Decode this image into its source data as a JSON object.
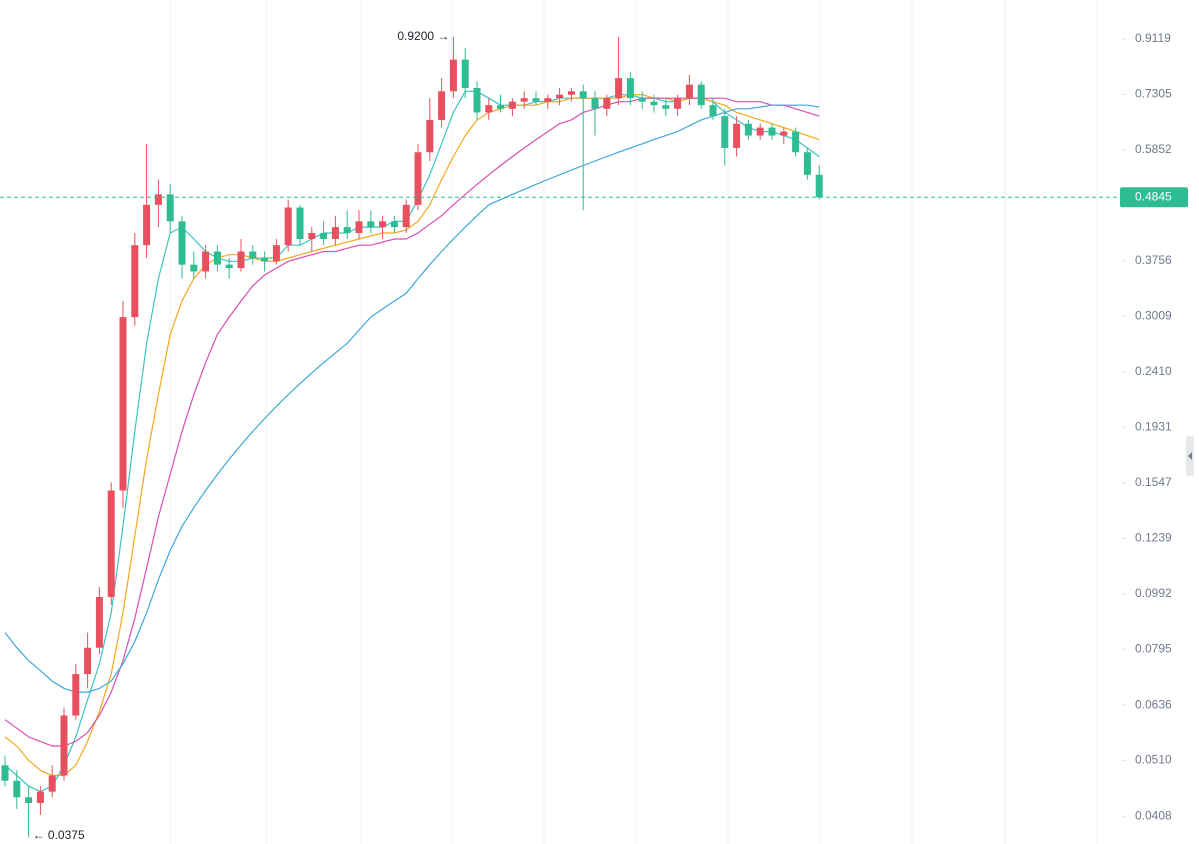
{
  "chart_data": {
    "type": "candlestick",
    "up_color": "#e8505f",
    "down_color": "#2ebd92",
    "log_scale": true,
    "ylim": [
      0.0365,
      1.066
    ],
    "yticks": [
      0.9119,
      0.7305,
      0.5852,
      0.3756,
      0.3009,
      {
        "value": 0.241,
        "label": "0.2410"
      },
      0.1931,
      0.1547,
      0.1239,
      0.0992,
      0.0795,
      0.0636,
      {
        "value": 0.051,
        "label": "0.0510"
      },
      0.0408
    ],
    "ohlc": [
      [
        0.05,
        0.052,
        0.046,
        0.047
      ],
      [
        0.047,
        0.049,
        0.042,
        0.044
      ],
      [
        0.044,
        0.046,
        0.0375,
        0.043
      ],
      [
        0.043,
        0.046,
        0.041,
        0.045
      ],
      [
        0.045,
        0.05,
        0.044,
        0.048
      ],
      [
        0.048,
        0.063,
        0.047,
        0.061
      ],
      [
        0.061,
        0.075,
        0.06,
        0.072
      ],
      [
        0.072,
        0.085,
        0.068,
        0.08
      ],
      [
        0.08,
        0.102,
        0.078,
        0.098
      ],
      [
        0.098,
        0.155,
        0.095,
        0.15
      ],
      [
        0.15,
        0.32,
        0.14,
        0.3
      ],
      [
        0.3,
        0.42,
        0.29,
        0.4
      ],
      [
        0.4,
        0.6,
        0.38,
        0.47
      ],
      [
        0.47,
        0.52,
        0.43,
        0.49
      ],
      [
        0.49,
        0.51,
        0.42,
        0.44
      ],
      [
        0.44,
        0.45,
        0.35,
        0.37
      ],
      [
        0.37,
        0.39,
        0.35,
        0.36
      ],
      [
        0.36,
        0.4,
        0.35,
        0.39
      ],
      [
        0.39,
        0.4,
        0.36,
        0.37
      ],
      [
        0.37,
        0.38,
        0.35,
        0.365
      ],
      [
        0.365,
        0.41,
        0.36,
        0.39
      ],
      [
        0.39,
        0.4,
        0.37,
        0.38
      ],
      [
        0.38,
        0.39,
        0.36,
        0.375
      ],
      [
        0.375,
        0.41,
        0.37,
        0.4
      ],
      [
        0.4,
        0.48,
        0.39,
        0.465
      ],
      [
        0.465,
        0.47,
        0.4,
        0.41
      ],
      [
        0.41,
        0.43,
        0.39,
        0.42
      ],
      [
        0.42,
        0.44,
        0.4,
        0.41
      ],
      [
        0.41,
        0.45,
        0.4,
        0.43
      ],
      [
        0.43,
        0.46,
        0.41,
        0.42
      ],
      [
        0.42,
        0.46,
        0.41,
        0.44
      ],
      [
        0.44,
        0.46,
        0.42,
        0.43
      ],
      [
        0.43,
        0.45,
        0.41,
        0.44
      ],
      [
        0.44,
        0.45,
        0.42,
        0.43
      ],
      [
        0.43,
        0.48,
        0.42,
        0.47
      ],
      [
        0.47,
        0.6,
        0.46,
        0.58
      ],
      [
        0.58,
        0.72,
        0.56,
        0.66
      ],
      [
        0.66,
        0.78,
        0.64,
        0.74
      ],
      [
        0.74,
        0.92,
        0.72,
        0.84
      ],
      [
        0.84,
        0.88,
        0.72,
        0.75
      ],
      [
        0.75,
        0.77,
        0.66,
        0.68
      ],
      [
        0.68,
        0.72,
        0.66,
        0.7
      ],
      [
        0.7,
        0.73,
        0.68,
        0.69
      ],
      [
        0.69,
        0.72,
        0.67,
        0.71
      ],
      [
        0.71,
        0.74,
        0.69,
        0.72
      ],
      [
        0.72,
        0.74,
        0.7,
        0.71
      ],
      [
        0.71,
        0.73,
        0.69,
        0.72
      ],
      [
        0.72,
        0.75,
        0.7,
        0.73
      ],
      [
        0.73,
        0.75,
        0.71,
        0.74
      ],
      [
        0.74,
        0.76,
        0.46,
        0.72
      ],
      [
        0.72,
        0.74,
        0.62,
        0.69
      ],
      [
        0.69,
        0.73,
        0.67,
        0.72
      ],
      [
        0.72,
        0.92,
        0.7,
        0.78
      ],
      [
        0.78,
        0.8,
        0.7,
        0.72
      ],
      [
        0.72,
        0.74,
        0.69,
        0.71
      ],
      [
        0.71,
        0.73,
        0.68,
        0.7
      ],
      [
        0.7,
        0.72,
        0.67,
        0.69
      ],
      [
        0.69,
        0.73,
        0.67,
        0.72
      ],
      [
        0.72,
        0.79,
        0.7,
        0.76
      ],
      [
        0.76,
        0.77,
        0.69,
        0.7
      ],
      [
        0.7,
        0.72,
        0.66,
        0.67
      ],
      [
        0.67,
        0.69,
        0.55,
        0.59
      ],
      [
        0.59,
        0.67,
        0.57,
        0.65
      ],
      [
        0.65,
        0.66,
        0.61,
        0.62
      ],
      [
        0.62,
        0.65,
        0.61,
        0.64
      ],
      [
        0.64,
        0.65,
        0.61,
        0.62
      ],
      [
        0.62,
        0.64,
        0.6,
        0.63
      ],
      [
        0.63,
        0.64,
        0.57,
        0.58
      ],
      [
        0.58,
        0.59,
        0.52,
        0.53
      ],
      [
        0.53,
        0.55,
        0.48,
        0.4845
      ]
    ],
    "series": [
      {
        "color": "#3cc4c4",
        "values": [
          0.05,
          0.048,
          0.046,
          0.045,
          0.046,
          0.05,
          0.056,
          0.065,
          0.075,
          0.092,
          0.13,
          0.19,
          0.27,
          0.35,
          0.42,
          0.43,
          0.41,
          0.39,
          0.38,
          0.375,
          0.375,
          0.38,
          0.38,
          0.38,
          0.4,
          0.4,
          0.41,
          0.42,
          0.42,
          0.42,
          0.43,
          0.43,
          0.43,
          0.44,
          0.44,
          0.48,
          0.53,
          0.6,
          0.68,
          0.74,
          0.74,
          0.72,
          0.7,
          0.7,
          0.7,
          0.71,
          0.71,
          0.72,
          0.72,
          0.72,
          0.72,
          0.72,
          0.73,
          0.73,
          0.72,
          0.72,
          0.71,
          0.71,
          0.72,
          0.72,
          0.71,
          0.68,
          0.66,
          0.64,
          0.63,
          0.63,
          0.62,
          0.61,
          0.59,
          0.57
        ]
      },
      {
        "color": "#f2a81d",
        "values": [
          0.056,
          0.054,
          0.051,
          0.049,
          0.048,
          0.048,
          0.05,
          0.055,
          0.062,
          0.072,
          0.092,
          0.125,
          0.17,
          0.22,
          0.28,
          0.32,
          0.35,
          0.37,
          0.38,
          0.385,
          0.385,
          0.38,
          0.375,
          0.375,
          0.38,
          0.385,
          0.39,
          0.395,
          0.4,
          0.405,
          0.41,
          0.415,
          0.42,
          0.42,
          0.425,
          0.44,
          0.47,
          0.52,
          0.57,
          0.62,
          0.66,
          0.68,
          0.69,
          0.7,
          0.7,
          0.7,
          0.71,
          0.71,
          0.72,
          0.72,
          0.72,
          0.72,
          0.72,
          0.73,
          0.73,
          0.72,
          0.72,
          0.71,
          0.72,
          0.72,
          0.71,
          0.7,
          0.68,
          0.67,
          0.66,
          0.65,
          0.64,
          0.63,
          0.62,
          0.61
        ]
      },
      {
        "color": "#d94fb3",
        "values": [
          0.06,
          0.058,
          0.056,
          0.055,
          0.054,
          0.054,
          0.055,
          0.057,
          0.061,
          0.067,
          0.076,
          0.09,
          0.11,
          0.135,
          0.16,
          0.19,
          0.22,
          0.25,
          0.28,
          0.3,
          0.32,
          0.34,
          0.355,
          0.365,
          0.375,
          0.38,
          0.385,
          0.39,
          0.39,
          0.395,
          0.4,
          0.4,
          0.405,
          0.41,
          0.41,
          0.42,
          0.435,
          0.45,
          0.47,
          0.49,
          0.51,
          0.53,
          0.55,
          0.57,
          0.59,
          0.61,
          0.63,
          0.65,
          0.66,
          0.68,
          0.69,
          0.7,
          0.71,
          0.71,
          0.72,
          0.72,
          0.72,
          0.72,
          0.72,
          0.72,
          0.72,
          0.72,
          0.71,
          0.71,
          0.71,
          0.7,
          0.7,
          0.69,
          0.68,
          0.67
        ]
      },
      {
        "color": "#3ea8dc",
        "values": [
          0.085,
          0.08,
          0.076,
          0.073,
          0.07,
          0.068,
          0.067,
          0.067,
          0.068,
          0.07,
          0.075,
          0.082,
          0.092,
          0.105,
          0.118,
          0.13,
          0.14,
          0.15,
          0.16,
          0.17,
          0.18,
          0.19,
          0.2,
          0.21,
          0.22,
          0.23,
          0.24,
          0.25,
          0.26,
          0.27,
          0.285,
          0.3,
          0.31,
          0.32,
          0.33,
          0.35,
          0.37,
          0.39,
          0.41,
          0.43,
          0.45,
          0.47,
          0.48,
          0.49,
          0.5,
          0.51,
          0.52,
          0.53,
          0.54,
          0.55,
          0.56,
          0.57,
          0.58,
          0.59,
          0.6,
          0.61,
          0.62,
          0.63,
          0.645,
          0.66,
          0.67,
          0.68,
          0.69,
          0.69,
          0.695,
          0.7,
          0.7,
          0.7,
          0.7,
          0.695
        ]
      }
    ],
    "last_price": {
      "value": 0.4845,
      "label": "0.4845",
      "color": "#2ebd92"
    },
    "annotations": [
      {
        "text": "0.9200 →"
      },
      {
        "text": "← 0.0375"
      }
    ]
  }
}
